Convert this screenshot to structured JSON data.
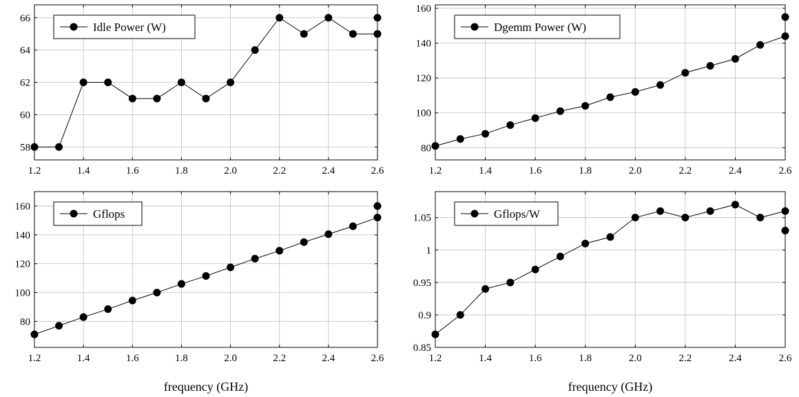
{
  "chart_data": [
    {
      "type": "line",
      "series": [
        {
          "name": "Idle Power (W)",
          "x": [
            1.2,
            1.3,
            1.4,
            1.5,
            1.6,
            1.7,
            1.8,
            1.9,
            2.0,
            2.1,
            2.2,
            2.3,
            2.4,
            2.5,
            2.6,
            2.6
          ],
          "values": [
            58,
            58,
            62,
            62,
            61,
            61,
            62,
            61,
            62,
            64,
            66,
            65,
            66,
            65,
            65,
            66
          ]
        }
      ],
      "xlim": [
        1.2,
        2.6
      ],
      "ylim": [
        57.2,
        66.8
      ],
      "xticks": [
        "1.2",
        "1.4",
        "1.6",
        "1.8",
        "2.0",
        "2.2",
        "2.4",
        "2.6"
      ],
      "yticks": [
        "58",
        "60",
        "62",
        "64",
        "66"
      ],
      "xlabel": "",
      "ylabel": "",
      "grid": true,
      "legend": "top-left"
    },
    {
      "type": "line",
      "series": [
        {
          "name": "Dgemm Power (W)",
          "x": [
            1.2,
            1.3,
            1.4,
            1.5,
            1.6,
            1.7,
            1.8,
            1.9,
            2.0,
            2.1,
            2.2,
            2.3,
            2.4,
            2.5,
            2.6,
            2.6
          ],
          "values": [
            81,
            85,
            88,
            93,
            97,
            101,
            104,
            109,
            112,
            116,
            123,
            127,
            131,
            139,
            144,
            155
          ]
        }
      ],
      "xlim": [
        1.2,
        2.6
      ],
      "ylim": [
        73,
        162
      ],
      "xticks": [
        "1.2",
        "1.4",
        "1.6",
        "1.8",
        "2.0",
        "2.2",
        "2.4",
        "2.6"
      ],
      "yticks": [
        "80",
        "100",
        "120",
        "140",
        "160"
      ],
      "xlabel": "",
      "ylabel": "",
      "grid": true,
      "legend": "top-left"
    },
    {
      "type": "line",
      "series": [
        {
          "name": "Gflops",
          "x": [
            1.2,
            1.3,
            1.4,
            1.5,
            1.6,
            1.7,
            1.8,
            1.9,
            2.0,
            2.1,
            2.2,
            2.3,
            2.4,
            2.5,
            2.6,
            2.6
          ],
          "values": [
            71,
            77,
            83,
            88.5,
            94.5,
            100,
            106,
            111.5,
            117.5,
            123.5,
            129,
            135,
            140.5,
            146,
            152,
            160
          ]
        }
      ],
      "xlim": [
        1.2,
        2.6
      ],
      "ylim": [
        62,
        170
      ],
      "xticks": [
        "1.2",
        "1.4",
        "1.6",
        "1.8",
        "2.0",
        "2.2",
        "2.4",
        "2.6"
      ],
      "yticks": [
        "80",
        "100",
        "120",
        "140",
        "160"
      ],
      "xlabel": "frequency (GHz)",
      "ylabel": "",
      "grid": true,
      "legend": "top-left"
    },
    {
      "type": "line",
      "series": [
        {
          "name": "Gflops/W",
          "x": [
            1.2,
            1.3,
            1.4,
            1.5,
            1.6,
            1.7,
            1.8,
            1.9,
            2.0,
            2.1,
            2.2,
            2.3,
            2.4,
            2.5,
            2.6,
            2.6
          ],
          "values": [
            0.87,
            0.9,
            0.94,
            0.95,
            0.97,
            0.99,
            1.01,
            1.02,
            1.05,
            1.06,
            1.05,
            1.06,
            1.07,
            1.05,
            1.06,
            1.03
          ]
        }
      ],
      "xlim": [
        1.2,
        2.6
      ],
      "ylim": [
        0.85,
        1.09
      ],
      "xticks": [
        "1.2",
        "1.4",
        "1.6",
        "1.8",
        "2.0",
        "2.2",
        "2.4",
        "2.6"
      ],
      "yticks": [
        "0.85",
        "0.9",
        "0.95",
        "1",
        "1.05"
      ],
      "xlabel": "frequency (GHz)",
      "ylabel": "",
      "grid": true,
      "legend": "top-left"
    }
  ],
  "colors": {
    "line": "#000000",
    "marker": "#000000",
    "grid": "#bdbdbd"
  }
}
